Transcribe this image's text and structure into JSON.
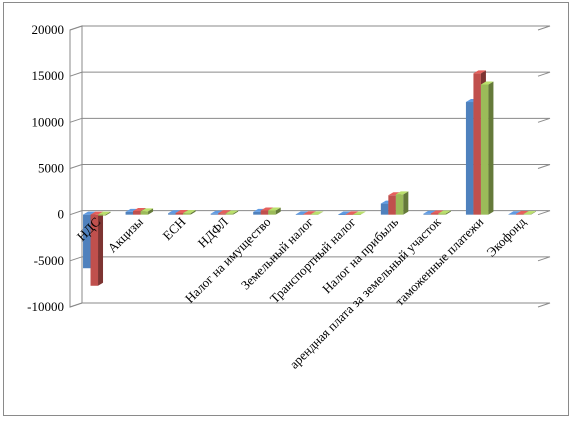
{
  "chart_data": {
    "type": "bar",
    "style": "3d-clustered-column",
    "categories": [
      "НДС",
      "Акцизы",
      "ЕСН",
      "НДФЛ",
      "Налог на имущество",
      "Земельный налог",
      "Транспортный налог",
      "Налог на прибыль",
      "арендная плата за земельный участок",
      "таможенные платежи",
      "Экофонд"
    ],
    "series": [
      {
        "values": [
          -5800,
          300,
          150,
          100,
          300,
          30,
          20,
          1200,
          100,
          12200,
          50
        ]
      },
      {
        "values": [
          -7700,
          400,
          180,
          150,
          450,
          40,
          25,
          2100,
          130,
          15300,
          70
        ]
      },
      {
        "values": [
          -100,
          350,
          170,
          120,
          450,
          35,
          20,
          2200,
          120,
          14100,
          60
        ]
      }
    ],
    "colors": [
      "#4f81bd",
      "#c0504d",
      "#9bbb59"
    ],
    "yticks": [
      20000,
      15000,
      10000,
      5000,
      0,
      -5000,
      -10000
    ],
    "ylim": [
      -10000,
      20000
    ],
    "grid": true,
    "legend": "none"
  }
}
